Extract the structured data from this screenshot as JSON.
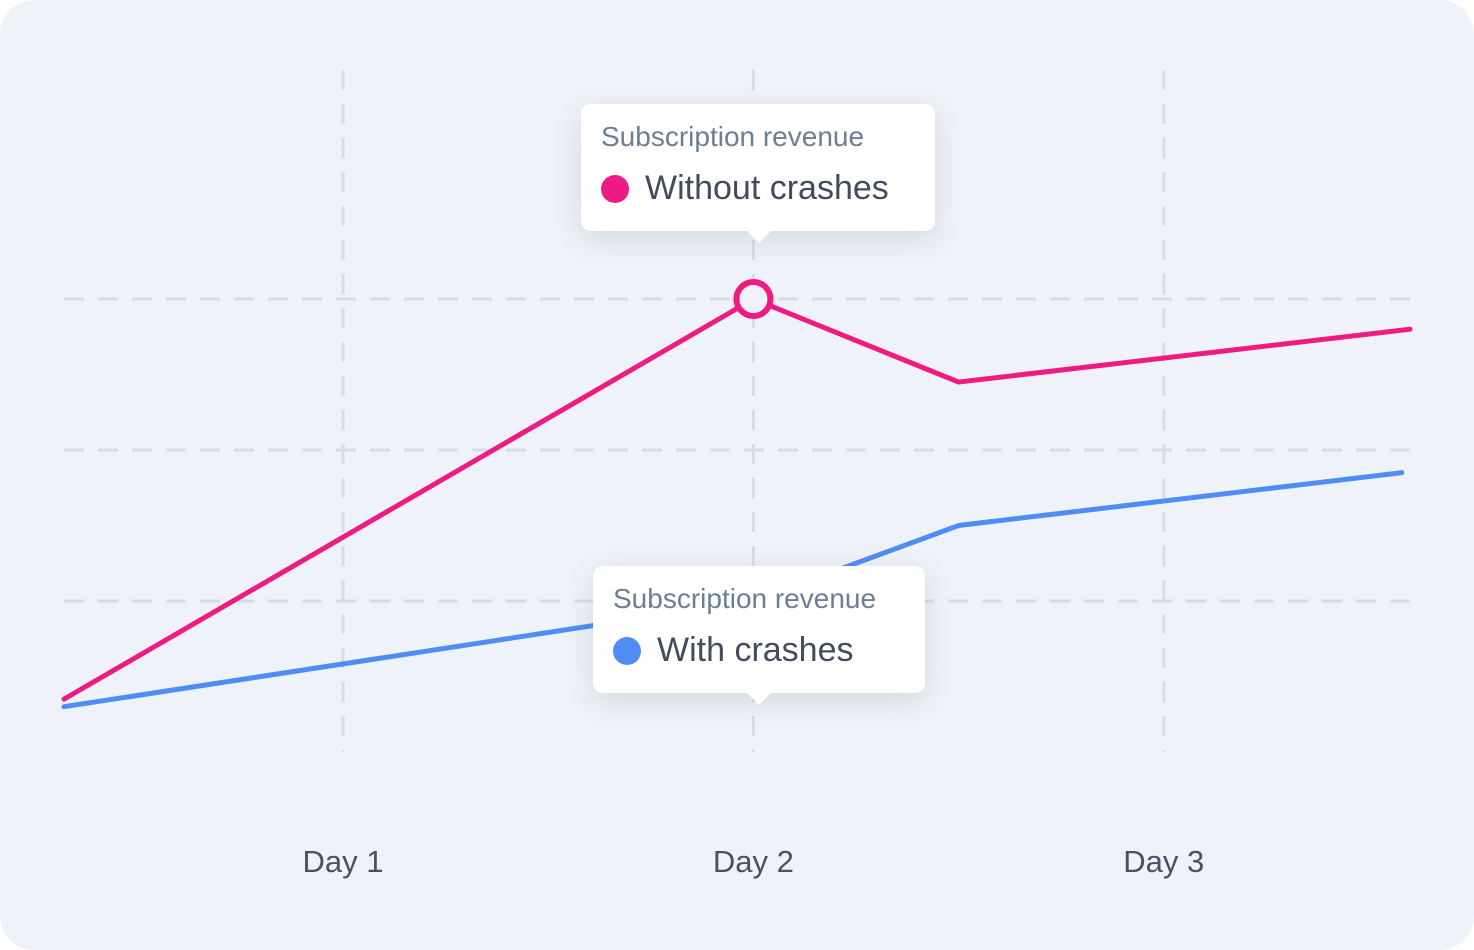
{
  "chart_data": {
    "type": "line",
    "background": "#eff2f8",
    "grid_color": "#d8dce6",
    "grid": true,
    "x_ticks": [
      {
        "label": "Day 1",
        "x": 1
      },
      {
        "label": "Day 2",
        "x": 2
      },
      {
        "label": "Day 3",
        "x": 3
      }
    ],
    "xlim": [
      0.32,
      3.6
    ],
    "ylim": [
      0,
      3.3
    ],
    "y_gridlines": [
      1,
      2,
      3
    ],
    "series": [
      {
        "name": "Without crashes",
        "color": "#ef1a82",
        "x": [
          0.32,
          2.0,
          2.5,
          3.6
        ],
        "y": [
          0.35,
          3.0,
          2.45,
          2.8
        ],
        "highlight_index": 1
      },
      {
        "name": "With crashes",
        "color": "#4f8df5",
        "x": [
          0.32,
          2.0,
          2.5,
          3.58
        ],
        "y": [
          0.3,
          1.0,
          1.5,
          1.85
        ],
        "highlight_index": 1
      }
    ]
  },
  "tooltips": [
    {
      "title": "Subscription revenue",
      "label": "Without crashes",
      "color": "#ef1a82"
    },
    {
      "title": "Subscription revenue",
      "label": "With crashes",
      "color": "#4f8df5"
    }
  ]
}
